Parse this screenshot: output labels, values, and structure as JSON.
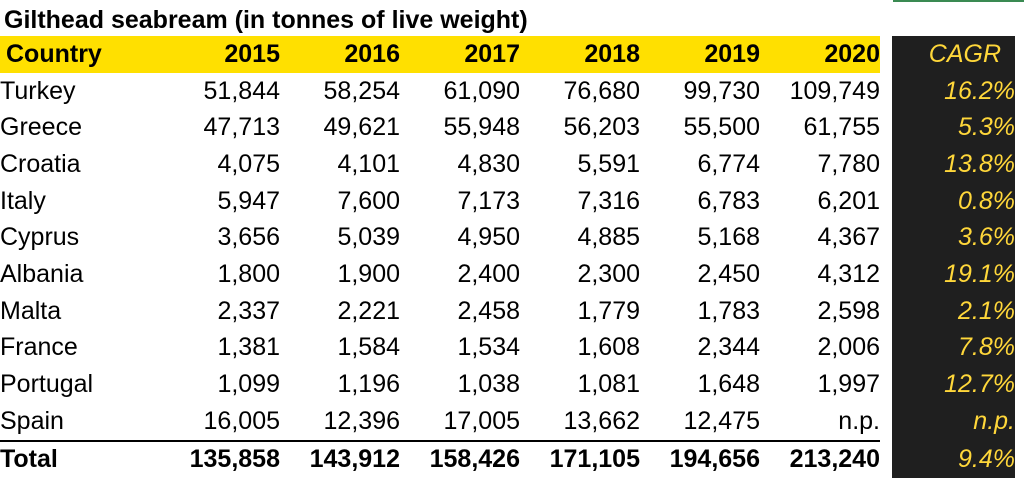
{
  "title": "Gilthead seabream (in tonnes of live weight)",
  "header": {
    "country": "Country",
    "years": [
      "2015",
      "2016",
      "2017",
      "2018",
      "2019",
      "2020"
    ],
    "cagr": "CAGR"
  },
  "rows": [
    {
      "country": "Turkey",
      "values": [
        "51,844",
        "58,254",
        "61,090",
        "76,680",
        "99,730",
        "109,749"
      ],
      "cagr": "16.2%"
    },
    {
      "country": "Greece",
      "values": [
        "47,713",
        "49,621",
        "55,948",
        "56,203",
        "55,500",
        "61,755"
      ],
      "cagr": "5.3%"
    },
    {
      "country": "Croatia",
      "values": [
        "4,075",
        "4,101",
        "4,830",
        "5,591",
        "6,774",
        "7,780"
      ],
      "cagr": "13.8%"
    },
    {
      "country": "Italy",
      "values": [
        "5,947",
        "7,600",
        "7,173",
        "7,316",
        "6,783",
        "6,201"
      ],
      "cagr": "0.8%"
    },
    {
      "country": "Cyprus",
      "values": [
        "3,656",
        "5,039",
        "4,950",
        "4,885",
        "5,168",
        "4,367"
      ],
      "cagr": "3.6%"
    },
    {
      "country": "Albania",
      "values": [
        "1,800",
        "1,900",
        "2,400",
        "2,300",
        "2,450",
        "4,312"
      ],
      "cagr": "19.1%"
    },
    {
      "country": "Malta",
      "values": [
        "2,337",
        "2,221",
        "2,458",
        "1,779",
        "1,783",
        "2,598"
      ],
      "cagr": "2.1%"
    },
    {
      "country": "France",
      "values": [
        "1,381",
        "1,584",
        "1,534",
        "1,608",
        "2,344",
        "2,006"
      ],
      "cagr": "7.8%"
    },
    {
      "country": "Portugal",
      "values": [
        "1,099",
        "1,196",
        "1,038",
        "1,081",
        "1,648",
        "1,997"
      ],
      "cagr": "12.7%"
    },
    {
      "country": "Spain",
      "values": [
        "16,005",
        "12,396",
        "17,005",
        "13,662",
        "12,475",
        "n.p."
      ],
      "cagr": "n.p."
    }
  ],
  "total": {
    "label": "Total",
    "values": [
      "135,858",
      "143,912",
      "158,426",
      "171,105",
      "194,656",
      "213,240"
    ],
    "cagr": "9.4%"
  },
  "colors": {
    "header_band": "#ffe000",
    "cagr_background": "#1f1f1f",
    "cagr_text": "#ffd73a"
  }
}
